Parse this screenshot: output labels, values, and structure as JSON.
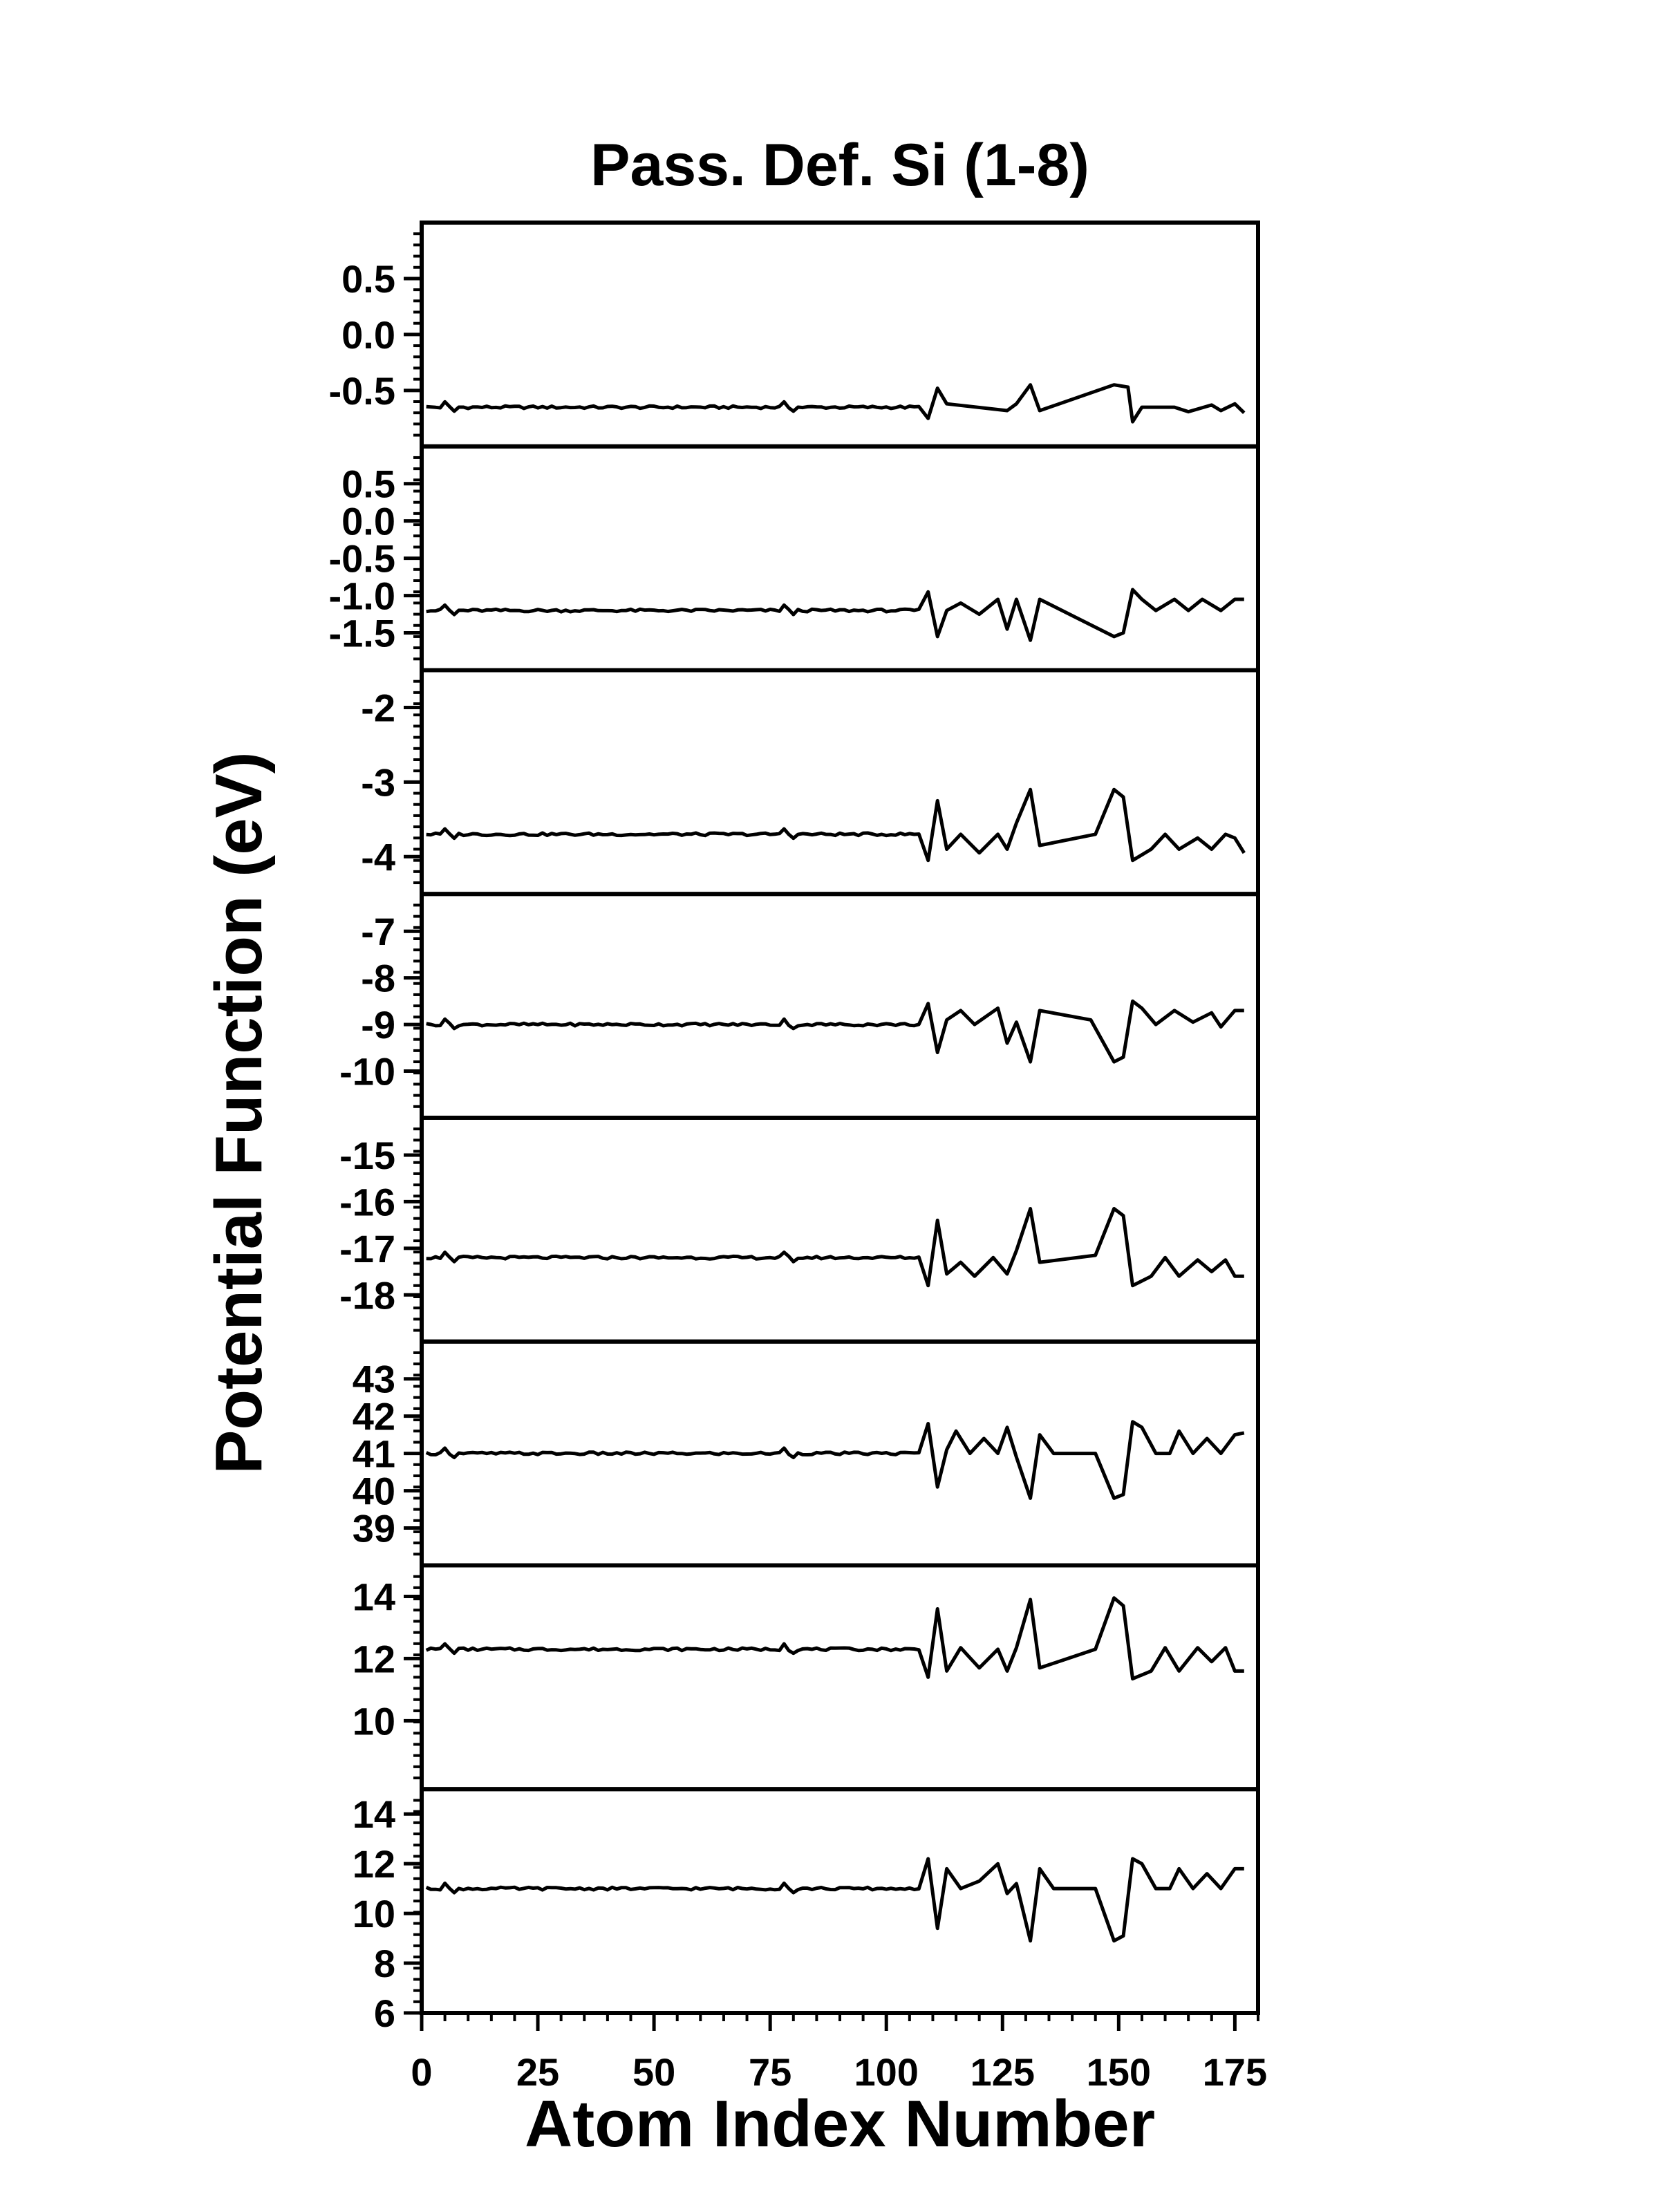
{
  "chart_data": {
    "type": "line",
    "title": "Pass. Def. Si (1-8)",
    "xlabel": "Atom Index Number",
    "ylabel": "Potential Function (eV)",
    "xlim": [
      0,
      180
    ],
    "x_ticks": [
      0,
      25,
      50,
      75,
      100,
      125,
      150,
      175
    ],
    "grid": false,
    "legend": "none",
    "line_color": "#000000",
    "panels": [
      {
        "id": 1,
        "ylim": [
          -1.0,
          1.0
        ],
        "ticks": [
          0.5,
          0.0,
          -0.5
        ],
        "tick_labels": [
          "0.5",
          "0.0",
          "-0.5"
        ],
        "baseline": -0.65,
        "features": [
          [
            109,
            -0.75
          ],
          [
            111,
            -0.48
          ],
          [
            113,
            -0.62
          ],
          [
            126,
            -0.68
          ],
          [
            128,
            -0.62
          ],
          [
            131,
            -0.45
          ],
          [
            133,
            -0.68
          ],
          [
            149,
            -0.45
          ],
          [
            152,
            -0.47
          ],
          [
            153,
            -0.78
          ],
          [
            155,
            -0.65
          ],
          [
            162,
            -0.65
          ],
          [
            165,
            -0.69
          ],
          [
            170,
            -0.63
          ],
          [
            172,
            -0.68
          ],
          [
            175,
            -0.62
          ],
          [
            177,
            -0.7
          ]
        ]
      },
      {
        "id": 2,
        "ylim": [
          -2.0,
          1.0
        ],
        "ticks": [
          0.5,
          0.0,
          -0.5,
          -1.0,
          -1.5
        ],
        "tick_labels": [
          "0.5",
          "0.0",
          "-0.5",
          "-1.0",
          "-1.5"
        ],
        "baseline": -1.2,
        "features": [
          [
            109,
            -0.95
          ],
          [
            111,
            -1.55
          ],
          [
            113,
            -1.2
          ],
          [
            116,
            -1.1
          ],
          [
            120,
            -1.25
          ],
          [
            124,
            -1.05
          ],
          [
            126,
            -1.45
          ],
          [
            128,
            -1.05
          ],
          [
            131,
            -1.6
          ],
          [
            133,
            -1.05
          ],
          [
            149,
            -1.55
          ],
          [
            151,
            -1.5
          ],
          [
            153,
            -0.92
          ],
          [
            155,
            -1.05
          ],
          [
            158,
            -1.2
          ],
          [
            162,
            -1.05
          ],
          [
            165,
            -1.2
          ],
          [
            168,
            -1.05
          ],
          [
            172,
            -1.2
          ],
          [
            175,
            -1.05
          ],
          [
            177,
            -1.05
          ]
        ]
      },
      {
        "id": 3,
        "ylim": [
          -4.5,
          -1.5
        ],
        "ticks": [
          -2,
          -3,
          -4
        ],
        "tick_labels": [
          "-2",
          "-3",
          "-4"
        ],
        "baseline": -3.7,
        "features": [
          [
            109,
            -4.05
          ],
          [
            111,
            -3.25
          ],
          [
            113,
            -3.9
          ],
          [
            116,
            -3.7
          ],
          [
            120,
            -3.95
          ],
          [
            124,
            -3.7
          ],
          [
            126,
            -3.9
          ],
          [
            128,
            -3.55
          ],
          [
            131,
            -3.1
          ],
          [
            133,
            -3.85
          ],
          [
            145,
            -3.7
          ],
          [
            149,
            -3.1
          ],
          [
            151,
            -3.2
          ],
          [
            153,
            -4.05
          ],
          [
            157,
            -3.9
          ],
          [
            160,
            -3.7
          ],
          [
            163,
            -3.9
          ],
          [
            167,
            -3.75
          ],
          [
            170,
            -3.9
          ],
          [
            173,
            -3.7
          ],
          [
            175,
            -3.75
          ],
          [
            177,
            -3.95
          ]
        ]
      },
      {
        "id": 4,
        "ylim": [
          -11,
          -6.2
        ],
        "ticks": [
          -7,
          -8,
          -9,
          -10
        ],
        "tick_labels": [
          "-7",
          "-8",
          "-9",
          "-10"
        ],
        "baseline": -9.0,
        "features": [
          [
            109,
            -8.55
          ],
          [
            111,
            -9.6
          ],
          [
            113,
            -8.9
          ],
          [
            116,
            -8.7
          ],
          [
            119,
            -9.0
          ],
          [
            124,
            -8.65
          ],
          [
            126,
            -9.4
          ],
          [
            128,
            -8.95
          ],
          [
            131,
            -9.8
          ],
          [
            133,
            -8.7
          ],
          [
            144,
            -8.9
          ],
          [
            149,
            -9.8
          ],
          [
            151,
            -9.7
          ],
          [
            153,
            -8.5
          ],
          [
            155,
            -8.65
          ],
          [
            158,
            -9.0
          ],
          [
            162,
            -8.7
          ],
          [
            166,
            -8.95
          ],
          [
            170,
            -8.75
          ],
          [
            172,
            -9.05
          ],
          [
            175,
            -8.7
          ],
          [
            177,
            -8.7
          ]
        ]
      },
      {
        "id": 5,
        "ylim": [
          -19,
          -14.2
        ],
        "ticks": [
          -15,
          -16,
          -17,
          -18
        ],
        "tick_labels": [
          "-15",
          "-16",
          "-17",
          "-18"
        ],
        "baseline": -17.2,
        "features": [
          [
            109,
            -17.8
          ],
          [
            111,
            -16.4
          ],
          [
            113,
            -17.55
          ],
          [
            116,
            -17.3
          ],
          [
            119,
            -17.6
          ],
          [
            123,
            -17.2
          ],
          [
            126,
            -17.55
          ],
          [
            128,
            -17.05
          ],
          [
            131,
            -16.15
          ],
          [
            133,
            -17.3
          ],
          [
            145,
            -17.15
          ],
          [
            149,
            -16.15
          ],
          [
            151,
            -16.3
          ],
          [
            153,
            -17.8
          ],
          [
            157,
            -17.6
          ],
          [
            160,
            -17.2
          ],
          [
            163,
            -17.6
          ],
          [
            167,
            -17.25
          ],
          [
            170,
            -17.5
          ],
          [
            173,
            -17.25
          ],
          [
            175,
            -17.6
          ],
          [
            177,
            -17.6
          ]
        ]
      },
      {
        "id": 6,
        "ylim": [
          38,
          44
        ],
        "ticks": [
          43,
          42,
          41,
          40,
          39
        ],
        "tick_labels": [
          "43",
          "42",
          "41",
          "40",
          "39"
        ],
        "baseline": 41.0,
        "features": [
          [
            109,
            41.8
          ],
          [
            111,
            40.1
          ],
          [
            113,
            41.1
          ],
          [
            115,
            41.6
          ],
          [
            118,
            41.0
          ],
          [
            121,
            41.4
          ],
          [
            124,
            41.0
          ],
          [
            126,
            41.7
          ],
          [
            128,
            40.9
          ],
          [
            131,
            39.8
          ],
          [
            133,
            41.5
          ],
          [
            136,
            41.0
          ],
          [
            145,
            41.0
          ],
          [
            149,
            39.8
          ],
          [
            151,
            39.9
          ],
          [
            153,
            41.85
          ],
          [
            155,
            41.7
          ],
          [
            158,
            41.0
          ],
          [
            161,
            41.0
          ],
          [
            163,
            41.6
          ],
          [
            166,
            41.0
          ],
          [
            169,
            41.4
          ],
          [
            172,
            41.0
          ],
          [
            175,
            41.5
          ],
          [
            177,
            41.55
          ]
        ]
      },
      {
        "id": 7,
        "ylim": [
          7.8,
          15
        ],
        "ticks": [
          14,
          12,
          10
        ],
        "tick_labels": [
          "14",
          "12",
          "10"
        ],
        "baseline": 12.3,
        "features": [
          [
            109,
            11.4
          ],
          [
            111,
            13.6
          ],
          [
            113,
            11.6
          ],
          [
            116,
            12.35
          ],
          [
            120,
            11.7
          ],
          [
            124,
            12.3
          ],
          [
            126,
            11.6
          ],
          [
            128,
            12.35
          ],
          [
            131,
            13.9
          ],
          [
            133,
            11.7
          ],
          [
            145,
            12.3
          ],
          [
            149,
            13.95
          ],
          [
            151,
            13.7
          ],
          [
            153,
            11.35
          ],
          [
            157,
            11.6
          ],
          [
            160,
            12.35
          ],
          [
            163,
            11.6
          ],
          [
            167,
            12.35
          ],
          [
            170,
            11.9
          ],
          [
            173,
            12.35
          ],
          [
            175,
            11.6
          ],
          [
            177,
            11.6
          ]
        ]
      },
      {
        "id": 8,
        "ylim": [
          6,
          15
        ],
        "ticks": [
          14,
          12,
          10,
          8,
          6
        ],
        "tick_labels": [
          "14",
          "12",
          "10",
          "8",
          "6"
        ],
        "baseline": 11.0,
        "features": [
          [
            109,
            12.2
          ],
          [
            111,
            9.4
          ],
          [
            113,
            11.8
          ],
          [
            116,
            11.0
          ],
          [
            120,
            11.3
          ],
          [
            124,
            12.0
          ],
          [
            126,
            10.8
          ],
          [
            128,
            11.2
          ],
          [
            131,
            8.9
          ],
          [
            133,
            11.8
          ],
          [
            136,
            11.0
          ],
          [
            145,
            11.0
          ],
          [
            149,
            8.9
          ],
          [
            151,
            9.1
          ],
          [
            153,
            12.2
          ],
          [
            155,
            12.0
          ],
          [
            158,
            11.0
          ],
          [
            161,
            11.0
          ],
          [
            163,
            11.8
          ],
          [
            166,
            11.0
          ],
          [
            169,
            11.6
          ],
          [
            172,
            11.0
          ],
          [
            175,
            11.8
          ],
          [
            177,
            11.8
          ]
        ]
      }
    ]
  }
}
